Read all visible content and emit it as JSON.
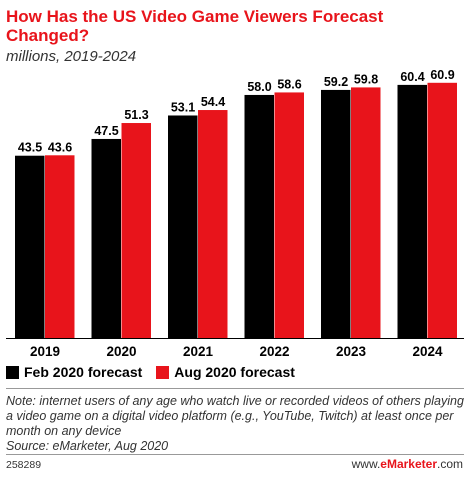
{
  "title": "How Has the US Video Game Viewers Forecast Changed?",
  "subtitle": "millions, 2019-2024",
  "colors": {
    "feb": "#000000",
    "aug": "#e8141b",
    "title": "#e8141b"
  },
  "legend": {
    "feb_label": "Feb 2020 forecast",
    "aug_label": "Aug 2020 forecast"
  },
  "note": "Note: internet users of any age who watch live or recorded videos of others playing a video game on a digital video platform (e.g., YouTube, Twitch) at least once per month on any device",
  "source": "Source: eMarketer, Aug 2020",
  "chart_id": "258289",
  "brand": {
    "prefix": "www.",
    "name": "eMarketer",
    "suffix": ".com"
  },
  "chart_data": {
    "type": "bar",
    "title": "How Has the US Video Game Viewers Forecast Changed?",
    "subtitle": "millions, 2019-2024",
    "categories": [
      "2019",
      "2020",
      "2021",
      "2022",
      "2023",
      "2024"
    ],
    "series": [
      {
        "name": "Feb 2020 forecast",
        "color": "#000000",
        "values": [
          43.5,
          47.5,
          53.1,
          58.0,
          59.2,
          60.4
        ]
      },
      {
        "name": "Aug 2020 forecast",
        "color": "#e8141b",
        "values": [
          43.6,
          51.3,
          54.4,
          58.6,
          59.8,
          60.9
        ]
      }
    ],
    "ylim": [
      0,
      70
    ],
    "grid": false,
    "legend_position": "bottom-left"
  }
}
